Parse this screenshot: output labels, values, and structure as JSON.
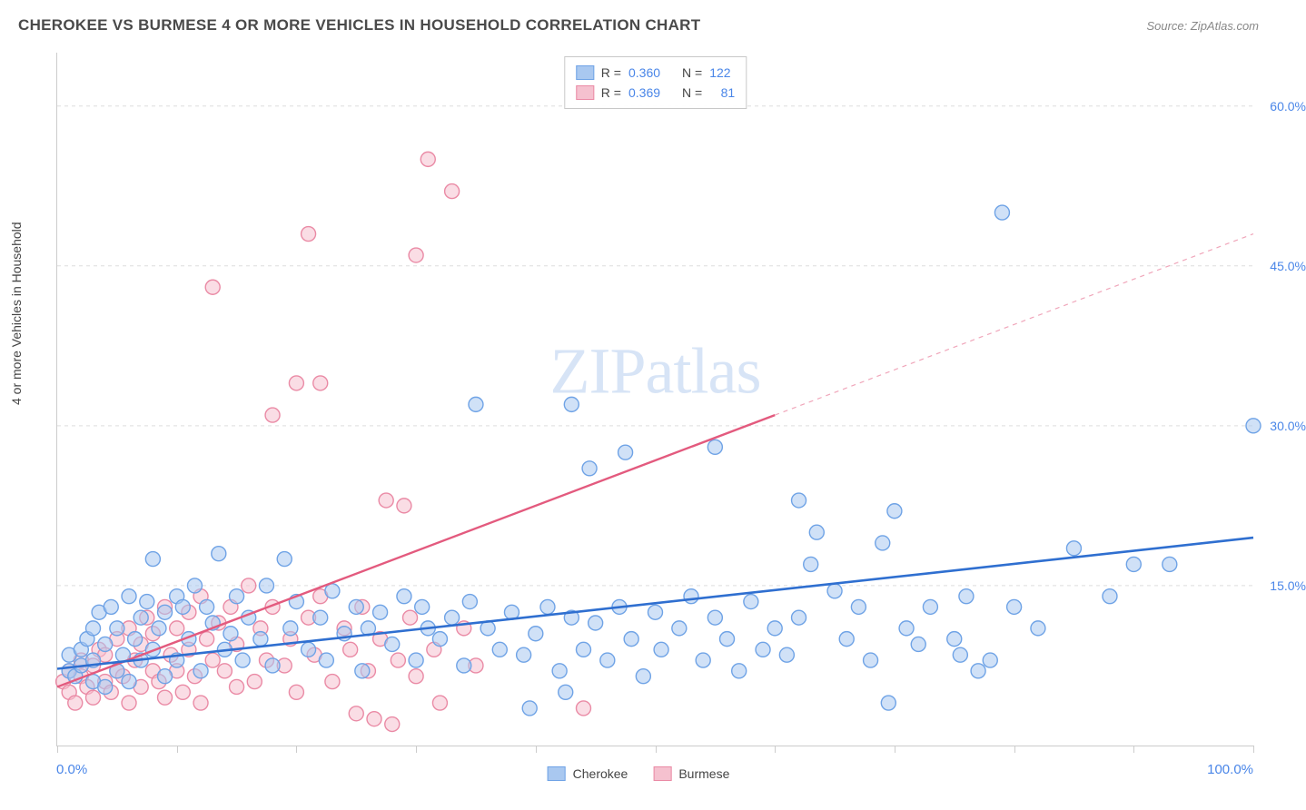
{
  "title": "CHEROKEE VS BURMESE 4 OR MORE VEHICLES IN HOUSEHOLD CORRELATION CHART",
  "source": "Source: ZipAtlas.com",
  "y_axis_label": "4 or more Vehicles in Household",
  "watermark": {
    "zip": "ZIP",
    "atlas": "atlas"
  },
  "chart": {
    "type": "scatter",
    "background_color": "#ffffff",
    "grid_color": "#dddddd",
    "axis_color": "#cccccc",
    "xlim": [
      0,
      100
    ],
    "ylim": [
      0,
      65
    ],
    "x_tick_labels": {
      "left": "0.0%",
      "right": "100.0%"
    },
    "x_tick_positions": [
      0,
      10,
      20,
      30,
      40,
      50,
      60,
      70,
      80,
      90,
      100
    ],
    "y_ticks": [
      {
        "value": 15,
        "label": "15.0%"
      },
      {
        "value": 30,
        "label": "30.0%"
      },
      {
        "value": 45,
        "label": "45.0%"
      },
      {
        "value": 60,
        "label": "60.0%"
      }
    ],
    "label_color": "#4a86e8",
    "label_fontsize": 14,
    "marker_radius": 8,
    "marker_opacity": 0.55,
    "marker_stroke_width": 1.4,
    "series": {
      "cherokee": {
        "label": "Cherokee",
        "fill_color": "#a9c8f0",
        "stroke_color": "#6fa3e6",
        "R": "0.360",
        "N": "122",
        "trend": {
          "x1": 0,
          "y1": 7.2,
          "x2": 100,
          "y2": 19.5,
          "color": "#2f6fd0",
          "width": 2.6,
          "dash": "none"
        },
        "points": [
          [
            1,
            7
          ],
          [
            1,
            8.5
          ],
          [
            1.5,
            6.5
          ],
          [
            2,
            9
          ],
          [
            2,
            7.5
          ],
          [
            2.5,
            10
          ],
          [
            3,
            6
          ],
          [
            3,
            11
          ],
          [
            3,
            8
          ],
          [
            3.5,
            12.5
          ],
          [
            4,
            5.5
          ],
          [
            4,
            9.5
          ],
          [
            4.5,
            13
          ],
          [
            5,
            7
          ],
          [
            5,
            11
          ],
          [
            5.5,
            8.5
          ],
          [
            6,
            14
          ],
          [
            6,
            6
          ],
          [
            6.5,
            10
          ],
          [
            7,
            12
          ],
          [
            7,
            8
          ],
          [
            7.5,
            13.5
          ],
          [
            8,
            17.5
          ],
          [
            8,
            9
          ],
          [
            8.5,
            11
          ],
          [
            9,
            6.5
          ],
          [
            9,
            12.5
          ],
          [
            10,
            14
          ],
          [
            10,
            8
          ],
          [
            10.5,
            13
          ],
          [
            11,
            10
          ],
          [
            11.5,
            15
          ],
          [
            12,
            7
          ],
          [
            12.5,
            13
          ],
          [
            13,
            11.5
          ],
          [
            13.5,
            18
          ],
          [
            14,
            9
          ],
          [
            14.5,
            10.5
          ],
          [
            15,
            14
          ],
          [
            15.5,
            8
          ],
          [
            16,
            12
          ],
          [
            17,
            10
          ],
          [
            17.5,
            15
          ],
          [
            18,
            7.5
          ],
          [
            19,
            17.5
          ],
          [
            19.5,
            11
          ],
          [
            20,
            13.5
          ],
          [
            21,
            9
          ],
          [
            22,
            12
          ],
          [
            22.5,
            8
          ],
          [
            23,
            14.5
          ],
          [
            24,
            10.5
          ],
          [
            25,
            13
          ],
          [
            25.5,
            7
          ],
          [
            26,
            11
          ],
          [
            27,
            12.5
          ],
          [
            28,
            9.5
          ],
          [
            29,
            14
          ],
          [
            30,
            8
          ],
          [
            30.5,
            13
          ],
          [
            31,
            11
          ],
          [
            32,
            10
          ],
          [
            33,
            12
          ],
          [
            34,
            7.5
          ],
          [
            34.5,
            13.5
          ],
          [
            35,
            32
          ],
          [
            36,
            11
          ],
          [
            37,
            9
          ],
          [
            38,
            12.5
          ],
          [
            39,
            8.5
          ],
          [
            39.5,
            3.5
          ],
          [
            40,
            10.5
          ],
          [
            41,
            13
          ],
          [
            42,
            7
          ],
          [
            42.5,
            5
          ],
          [
            43,
            32
          ],
          [
            43,
            12
          ],
          [
            44,
            9
          ],
          [
            44.5,
            26
          ],
          [
            45,
            11.5
          ],
          [
            46,
            8
          ],
          [
            47,
            13
          ],
          [
            47.5,
            27.5
          ],
          [
            48,
            10
          ],
          [
            49,
            6.5
          ],
          [
            50,
            12.5
          ],
          [
            50.5,
            9
          ],
          [
            52,
            11
          ],
          [
            53,
            14
          ],
          [
            54,
            8
          ],
          [
            55,
            28
          ],
          [
            55,
            12
          ],
          [
            56,
            10
          ],
          [
            57,
            7
          ],
          [
            58,
            13.5
          ],
          [
            59,
            9
          ],
          [
            60,
            11
          ],
          [
            61,
            8.5
          ],
          [
            62,
            23
          ],
          [
            62,
            12
          ],
          [
            63,
            17
          ],
          [
            63.5,
            20
          ],
          [
            65,
            14.5
          ],
          [
            66,
            10
          ],
          [
            67,
            13
          ],
          [
            68,
            8
          ],
          [
            69,
            19
          ],
          [
            69.5,
            4
          ],
          [
            70,
            22
          ],
          [
            71,
            11
          ],
          [
            72,
            9.5
          ],
          [
            73,
            13
          ],
          [
            75,
            10
          ],
          [
            75.5,
            8.5
          ],
          [
            76,
            14
          ],
          [
            77,
            7
          ],
          [
            78,
            8
          ],
          [
            79,
            50
          ],
          [
            80,
            13
          ],
          [
            82,
            11
          ],
          [
            85,
            18.5
          ],
          [
            88,
            14
          ],
          [
            90,
            17
          ],
          [
            93,
            17
          ],
          [
            100,
            30
          ]
        ]
      },
      "burmese": {
        "label": "Burmese",
        "fill_color": "#f5c1cf",
        "stroke_color": "#ea8aa5",
        "R": "0.369",
        "N": "81",
        "trend": {
          "x1": 0,
          "y1": 5.5,
          "x2": 60,
          "y2": 31,
          "color": "#e35a7e",
          "width": 2.4,
          "dash": "none"
        },
        "trend_ext": {
          "x1": 60,
          "y1": 31,
          "x2": 100,
          "y2": 48,
          "color": "#f0a6ba",
          "width": 1.2,
          "dash": "5,5"
        },
        "points": [
          [
            0.5,
            6
          ],
          [
            1,
            5
          ],
          [
            1,
            7
          ],
          [
            1.5,
            4
          ],
          [
            2,
            6.5
          ],
          [
            2,
            8
          ],
          [
            2.5,
            5.5
          ],
          [
            3,
            7.5
          ],
          [
            3,
            4.5
          ],
          [
            3.5,
            9
          ],
          [
            4,
            6
          ],
          [
            4,
            8.5
          ],
          [
            4.5,
            5
          ],
          [
            5,
            10
          ],
          [
            5,
            7
          ],
          [
            5.5,
            6.5
          ],
          [
            6,
            11
          ],
          [
            6,
            4
          ],
          [
            6.5,
            8
          ],
          [
            7,
            9.5
          ],
          [
            7,
            5.5
          ],
          [
            7.5,
            12
          ],
          [
            8,
            7
          ],
          [
            8,
            10.5
          ],
          [
            8.5,
            6
          ],
          [
            9,
            13
          ],
          [
            9,
            4.5
          ],
          [
            9.5,
            8.5
          ],
          [
            10,
            11
          ],
          [
            10,
            7
          ],
          [
            10.5,
            5
          ],
          [
            11,
            12.5
          ],
          [
            11,
            9
          ],
          [
            11.5,
            6.5
          ],
          [
            12,
            14
          ],
          [
            12,
            4
          ],
          [
            12.5,
            10
          ],
          [
            13,
            8
          ],
          [
            13,
            43
          ],
          [
            13.5,
            11.5
          ],
          [
            14,
            7
          ],
          [
            14.5,
            13
          ],
          [
            15,
            5.5
          ],
          [
            15,
            9.5
          ],
          [
            16,
            15
          ],
          [
            16.5,
            6
          ],
          [
            17,
            11
          ],
          [
            17.5,
            8
          ],
          [
            18,
            31
          ],
          [
            18,
            13
          ],
          [
            19,
            7.5
          ],
          [
            19.5,
            10
          ],
          [
            20,
            34
          ],
          [
            20,
            5
          ],
          [
            21,
            12
          ],
          [
            21,
            48
          ],
          [
            21.5,
            8.5
          ],
          [
            22,
            14
          ],
          [
            22,
            34
          ],
          [
            23,
            6
          ],
          [
            24,
            11
          ],
          [
            24.5,
            9
          ],
          [
            25,
            3
          ],
          [
            25.5,
            13
          ],
          [
            26,
            7
          ],
          [
            26.5,
            2.5
          ],
          [
            27,
            10
          ],
          [
            27.5,
            23
          ],
          [
            28,
            2
          ],
          [
            28.5,
            8
          ],
          [
            29,
            22.5
          ],
          [
            29.5,
            12
          ],
          [
            30,
            46
          ],
          [
            30,
            6.5
          ],
          [
            31,
            55
          ],
          [
            31.5,
            9
          ],
          [
            32,
            4
          ],
          [
            33,
            52
          ],
          [
            34,
            11
          ],
          [
            35,
            7.5
          ],
          [
            44,
            3.5
          ]
        ]
      }
    }
  },
  "top_legend": {
    "rows": [
      {
        "series": "cherokee",
        "r_label": "R =",
        "n_label": "N ="
      },
      {
        "series": "burmese",
        "r_label": "R =",
        "n_label": "N ="
      }
    ]
  },
  "bottom_legend": {
    "items": [
      {
        "series": "cherokee"
      },
      {
        "series": "burmese"
      }
    ]
  }
}
